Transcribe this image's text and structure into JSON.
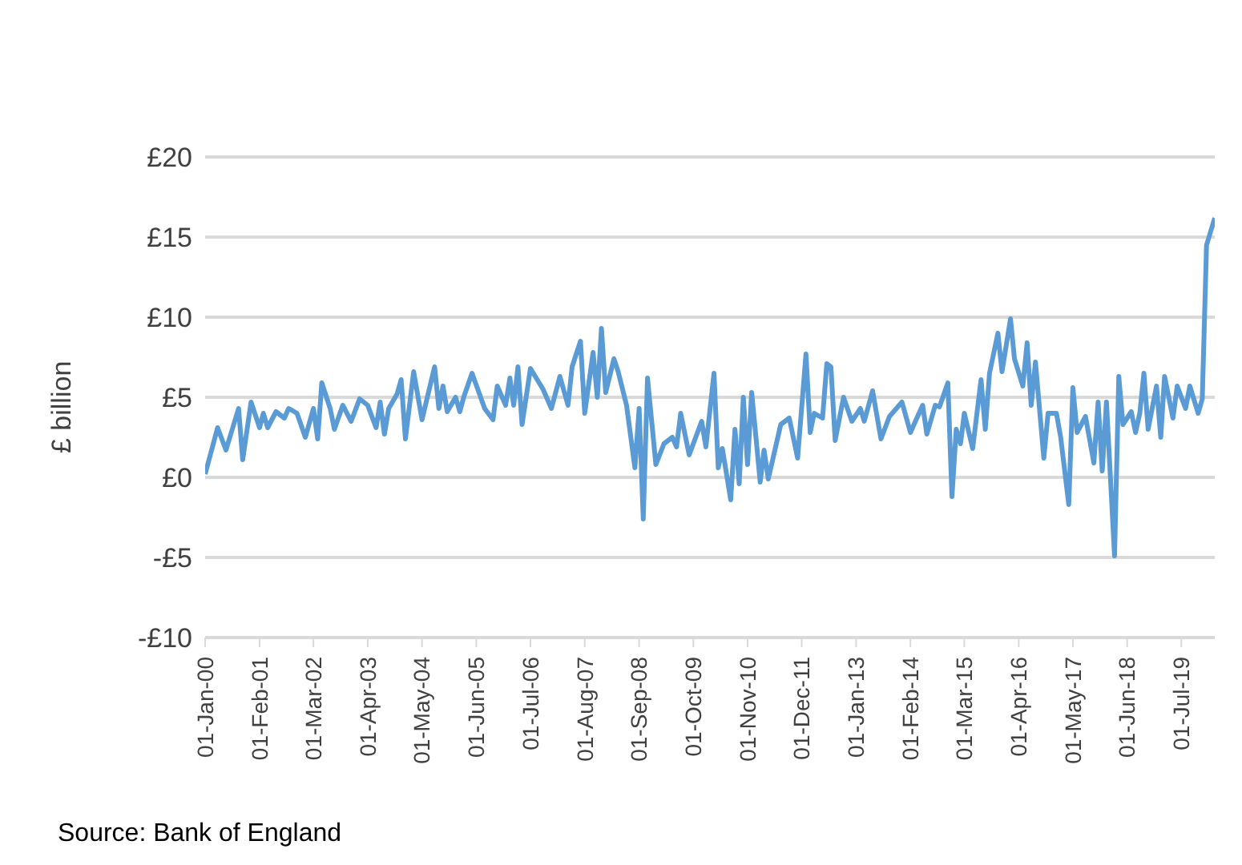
{
  "chart_data": {
    "type": "line",
    "ylabel": "£ billion",
    "annotations": [
      "Source: Bank of England"
    ],
    "grid": "y",
    "line_style": "solid",
    "marker": "none",
    "xlim": [
      "2000-01",
      "2020-03"
    ],
    "xticks": [
      {
        "value": "2000-01-01",
        "label": "01-Jan-00"
      },
      {
        "value": "2001-02-01",
        "label": "01-Feb-01"
      },
      {
        "value": "2002-03-01",
        "label": "01-Mar-02"
      },
      {
        "value": "2003-04-01",
        "label": "01-Apr-03"
      },
      {
        "value": "2004-05-01",
        "label": "01-May-04"
      },
      {
        "value": "2005-06-01",
        "label": "01-Jun-05"
      },
      {
        "value": "2006-07-01",
        "label": "01-Jul-06"
      },
      {
        "value": "2007-08-01",
        "label": "01-Aug-07"
      },
      {
        "value": "2008-09-01",
        "label": "01-Sep-08"
      },
      {
        "value": "2009-10-01",
        "label": "01-Oct-09"
      },
      {
        "value": "2010-11-01",
        "label": "01-Nov-10"
      },
      {
        "value": "2011-12-01",
        "label": "01-Dec-11"
      },
      {
        "value": "2013-01-01",
        "label": "01-Jan-13"
      },
      {
        "value": "2014-02-01",
        "label": "01-Feb-14"
      },
      {
        "value": "2015-03-01",
        "label": "01-Mar-15"
      },
      {
        "value": "2016-04-01",
        "label": "01-Apr-16"
      },
      {
        "value": "2017-05-01",
        "label": "01-May-17"
      },
      {
        "value": "2018-06-01",
        "label": "01-Jun-18"
      },
      {
        "value": "2019-07-01",
        "label": "01-Jul-19"
      }
    ],
    "ylim": [
      -10,
      20
    ],
    "yticks": [
      {
        "value": -10,
        "label": "-£10"
      },
      {
        "value": -5,
        "label": "-£5"
      },
      {
        "value": 0,
        "label": "£0"
      },
      {
        "value": 5,
        "label": "£5"
      },
      {
        "value": 10,
        "label": "£10"
      },
      {
        "value": 15,
        "label": "£15"
      },
      {
        "value": 20,
        "label": "£20"
      }
    ],
    "x": [
      "2000-01",
      "2000-04",
      "2000-06",
      "2000-09",
      "2000-10",
      "2000-12",
      "2001-02",
      "2001-03",
      "2001-04",
      "2001-06",
      "2001-08",
      "2001-09",
      "2001-11",
      "2002-01",
      "2002-03",
      "2002-04",
      "2002-05",
      "2002-07",
      "2002-08",
      "2002-10",
      "2002-12",
      "2003-02",
      "2003-04",
      "2003-06",
      "2003-07",
      "2003-08",
      "2003-09",
      "2003-11",
      "2003-12",
      "2004-01",
      "2004-03",
      "2004-05",
      "2004-08",
      "2004-09",
      "2004-10",
      "2004-11",
      "2005-01",
      "2005-02",
      "2005-03",
      "2005-05",
      "2005-08",
      "2005-10",
      "2005-11",
      "2006-01",
      "2006-02",
      "2006-03",
      "2006-04",
      "2006-05",
      "2006-07",
      "2006-10",
      "2006-12",
      "2007-02",
      "2007-04",
      "2007-05",
      "2007-07",
      "2007-08",
      "2007-10",
      "2007-11",
      "2007-12",
      "2008-01",
      "2008-03",
      "2008-04",
      "2008-06",
      "2008-08",
      "2008-09",
      "2008-10",
      "2008-11",
      "2009-01",
      "2009-03",
      "2009-05",
      "2009-06",
      "2009-07",
      "2009-09",
      "2009-12",
      "2010-01",
      "2010-03",
      "2010-04",
      "2010-05",
      "2010-07",
      "2010-08",
      "2010-09",
      "2010-10",
      "2010-11",
      "2010-12",
      "2011-02",
      "2011-03",
      "2011-04",
      "2011-07",
      "2011-09",
      "2011-11",
      "2012-01",
      "2012-02",
      "2012-03",
      "2012-05",
      "2012-06",
      "2012-07",
      "2012-08",
      "2012-10",
      "2012-12",
      "2013-02",
      "2013-03",
      "2013-05",
      "2013-07",
      "2013-09",
      "2013-12",
      "2014-02",
      "2014-05",
      "2014-06",
      "2014-08",
      "2014-09",
      "2014-11",
      "2014-12",
      "2015-01",
      "2015-02",
      "2015-03",
      "2015-05",
      "2015-07",
      "2015-08",
      "2015-09",
      "2015-11",
      "2015-12",
      "2016-02",
      "2016-03",
      "2016-05",
      "2016-06",
      "2016-07",
      "2016-08",
      "2016-10",
      "2016-11",
      "2017-01",
      "2017-02",
      "2017-04",
      "2017-05",
      "2017-06",
      "2017-08",
      "2017-10",
      "2017-11",
      "2017-12",
      "2018-01",
      "2018-03",
      "2018-04",
      "2018-05",
      "2018-07",
      "2018-08",
      "2018-09",
      "2018-10",
      "2018-11",
      "2019-01",
      "2019-02",
      "2019-03",
      "2019-05",
      "2019-06",
      "2019-08",
      "2019-09",
      "2019-11",
      "2019-12",
      "2020-01",
      "2020-03"
    ],
    "series": [
      {
        "color": "#5b9bd5",
        "values": [
          0.2,
          3.1,
          1.7,
          4.3,
          1.1,
          4.7,
          3.1,
          4.0,
          3.1,
          4.1,
          3.7,
          4.3,
          4.0,
          2.5,
          4.3,
          2.4,
          5.9,
          4.3,
          3.0,
          4.5,
          3.5,
          4.9,
          4.5,
          3.1,
          4.7,
          2.7,
          4.3,
          5.2,
          6.1,
          2.4,
          6.6,
          3.6,
          6.9,
          4.3,
          5.7,
          4.1,
          5.0,
          4.1,
          5.0,
          6.5,
          4.3,
          3.6,
          5.7,
          4.5,
          6.2,
          4.5,
          6.9,
          3.3,
          6.8,
          5.5,
          4.3,
          6.3,
          4.5,
          6.9,
          8.5,
          4.0,
          7.8,
          5.0,
          9.3,
          5.3,
          7.4,
          6.6,
          4.5,
          0.6,
          4.3,
          -2.6,
          6.2,
          0.8,
          2.1,
          2.5,
          1.9,
          4.0,
          1.4,
          3.5,
          1.9,
          6.5,
          0.6,
          1.8,
          -1.4,
          3.0,
          -0.4,
          5.0,
          0.8,
          5.3,
          -0.3,
          1.7,
          -0.1,
          3.3,
          3.7,
          1.2,
          7.7,
          2.8,
          4.0,
          3.7,
          7.1,
          6.9,
          2.3,
          5.0,
          3.5,
          4.3,
          3.5,
          5.4,
          2.4,
          3.8,
          4.7,
          2.8,
          4.5,
          2.7,
          4.5,
          4.4,
          5.9,
          -1.2,
          3.0,
          2.1,
          4.0,
          1.8,
          6.1,
          3.0,
          6.5,
          9.0,
          6.6,
          9.9,
          7.4,
          5.7,
          8.4,
          4.5,
          7.2,
          1.2,
          4.0,
          4.0,
          2.5,
          -1.7,
          5.6,
          2.8,
          3.8,
          0.9,
          4.7,
          0.4,
          4.7,
          -4.9,
          6.3,
          3.3,
          4.1,
          2.8,
          4.0,
          6.5,
          3.0,
          5.7,
          2.5,
          6.3,
          3.7,
          5.7,
          4.3,
          5.7,
          4.0,
          4.9,
          14.5,
          16.2
        ]
      }
    ]
  }
}
